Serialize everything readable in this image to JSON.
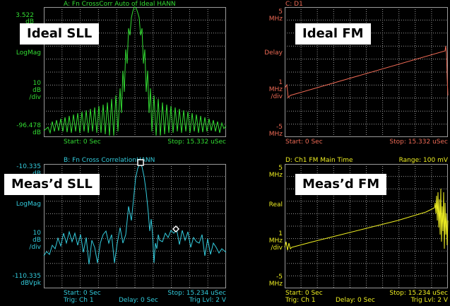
{
  "panels": {
    "a": {
      "color": "#33dd33",
      "header": "A: Fn CrossCorr Auto of Ideal HANN",
      "y_top": "3.522",
      "y_top_unit": "dB",
      "format": "LogMag",
      "scale_val": "10",
      "scale_unit1": "dB",
      "scale_unit2": "/div",
      "y_bottom": "-96.478",
      "y_bottom_unit": "dB",
      "start": "Start: 0  Sec",
      "stop": "Stop: 15.332 uSec",
      "callout": "Ideal SLL"
    },
    "b": {
      "color": "#33ccdd",
      "header": "B: Fn Cross CorrelationHANN",
      "y_top": "-10.335",
      "y_top_unit": "dB",
      "format": "LogMag",
      "scale_val": "10",
      "scale_unit1": "dB",
      "scale_unit2": "/div",
      "y_bottom": "-110.335",
      "y_bottom_unit": "dBVpk",
      "start": "Start: 0  Sec",
      "stop": "Stop: 15.234 uSec",
      "trig": "Trig: Ch 1",
      "delay": "Delay: 0  Sec",
      "trig_lvl": "Trig Lvl: 2  V",
      "callout": "Meas’d SLL"
    },
    "c": {
      "color": "#ee6a55",
      "header": "C: D1",
      "y_top": "5",
      "y_top_unit": "MHz",
      "format": "Delay",
      "scale_val": "1",
      "scale_unit1": "MHz",
      "scale_unit2": "/div",
      "y_bottom": "-5",
      "y_bottom_unit": "MHz",
      "start": "Start: 0  Sec",
      "stop": "Stop: 15.332 uSec",
      "callout": "Ideal FM"
    },
    "d": {
      "color": "#eeee22",
      "header": "D: Ch1 FM Main Time",
      "range": "Range: 100 mV",
      "y_top": "5",
      "y_top_unit": "MHz",
      "format": "Real",
      "scale_val": "1",
      "scale_unit1": "MHz",
      "scale_unit2": "/div",
      "y_bottom": "-5",
      "y_bottom_unit": "MHz",
      "start": "Start: 0  Sec",
      "stop": "Stop: 15.234 uSec",
      "trig": "Trig: Ch 1",
      "delay": "Delay: 0  Sec",
      "trig_lvl": "Trig Lvl: 2  V",
      "callout": "Meas’d FM"
    }
  }
}
